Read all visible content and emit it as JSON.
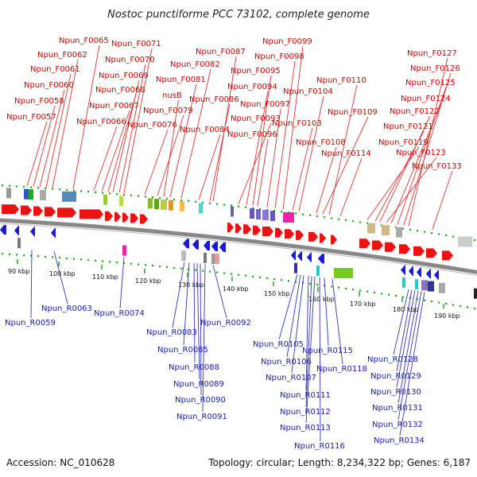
{
  "title": "Nostoc punctiforme PCC 73102, complete genome",
  "footer": {
    "accession": "Accession: NC_010628",
    "summary": "Topology: circular; Length: 8,234,322 bp; Genes: 6,187"
  },
  "colors": {
    "forward": "#ee1111",
    "reverse": "#1a1add",
    "forward_label": "#cc0000",
    "reverse_label": "#1a1aa8",
    "backbone": "#888888",
    "dots": "#22aa22"
  },
  "scale_ticks": [
    "90 kbp",
    "100 kbp",
    "110 kbp",
    "120 kbp",
    "130 kbp",
    "140 kbp",
    "150 kbp",
    "160 kbp",
    "170 kbp",
    "180 kbp",
    "190 kbp"
  ],
  "forward_genes": [
    "Npun_F0057",
    "Npun_F0058",
    "Npun_F0060",
    "Npun_F0061",
    "Npun_F0062",
    "Npun_F0065",
    "Npun_F0066",
    "Npun_F0067",
    "Npun_F0068",
    "Npun_F0069",
    "Npun_F0070",
    "Npun_F0071",
    "Npun_F0076",
    "Npun_F0079",
    "nusB",
    "Npun_F0081",
    "Npun_F0082",
    "Npun_F0084",
    "Npun_F0086",
    "Npun_F0087",
    "Npun_F0093",
    "Npun_F0094",
    "Npun_F0095",
    "Npun_F0096",
    "Npun_F0097",
    "Npun_F0098",
    "Npun_F0099",
    "Npun_F0103",
    "Npun_F0104",
    "Npun_F0108",
    "Npun_F0109",
    "Npun_F0110",
    "Npun_F0114",
    "Npun_F0119",
    "Npun_F0121",
    "Npun_F0122",
    "Npun_F0123",
    "Npun_F0124",
    "Npun_F0125",
    "Npun_F0126",
    "Npun_F0127",
    "Npun_F0133"
  ],
  "reverse_genes": [
    "Npun_R0059",
    "Npun_R0063",
    "Npun_R0074",
    "Npun_R0083",
    "Npun_R0085",
    "Npun_R0088",
    "Npun_R0089",
    "Npun_R0090",
    "Npun_R0091",
    "Npun_R0092",
    "Npun_R0105",
    "Npun_R0106",
    "Npun_R0107",
    "Npun_R0111",
    "Npun_R0112",
    "Npun_R0113",
    "Npun_R0115",
    "Npun_R0116",
    "Npun_R0118",
    "Npun_R0128",
    "Npun_R0129",
    "Npun_R0130",
    "Npun_R0131",
    "Npun_R0132",
    "Npun_R0134"
  ]
}
